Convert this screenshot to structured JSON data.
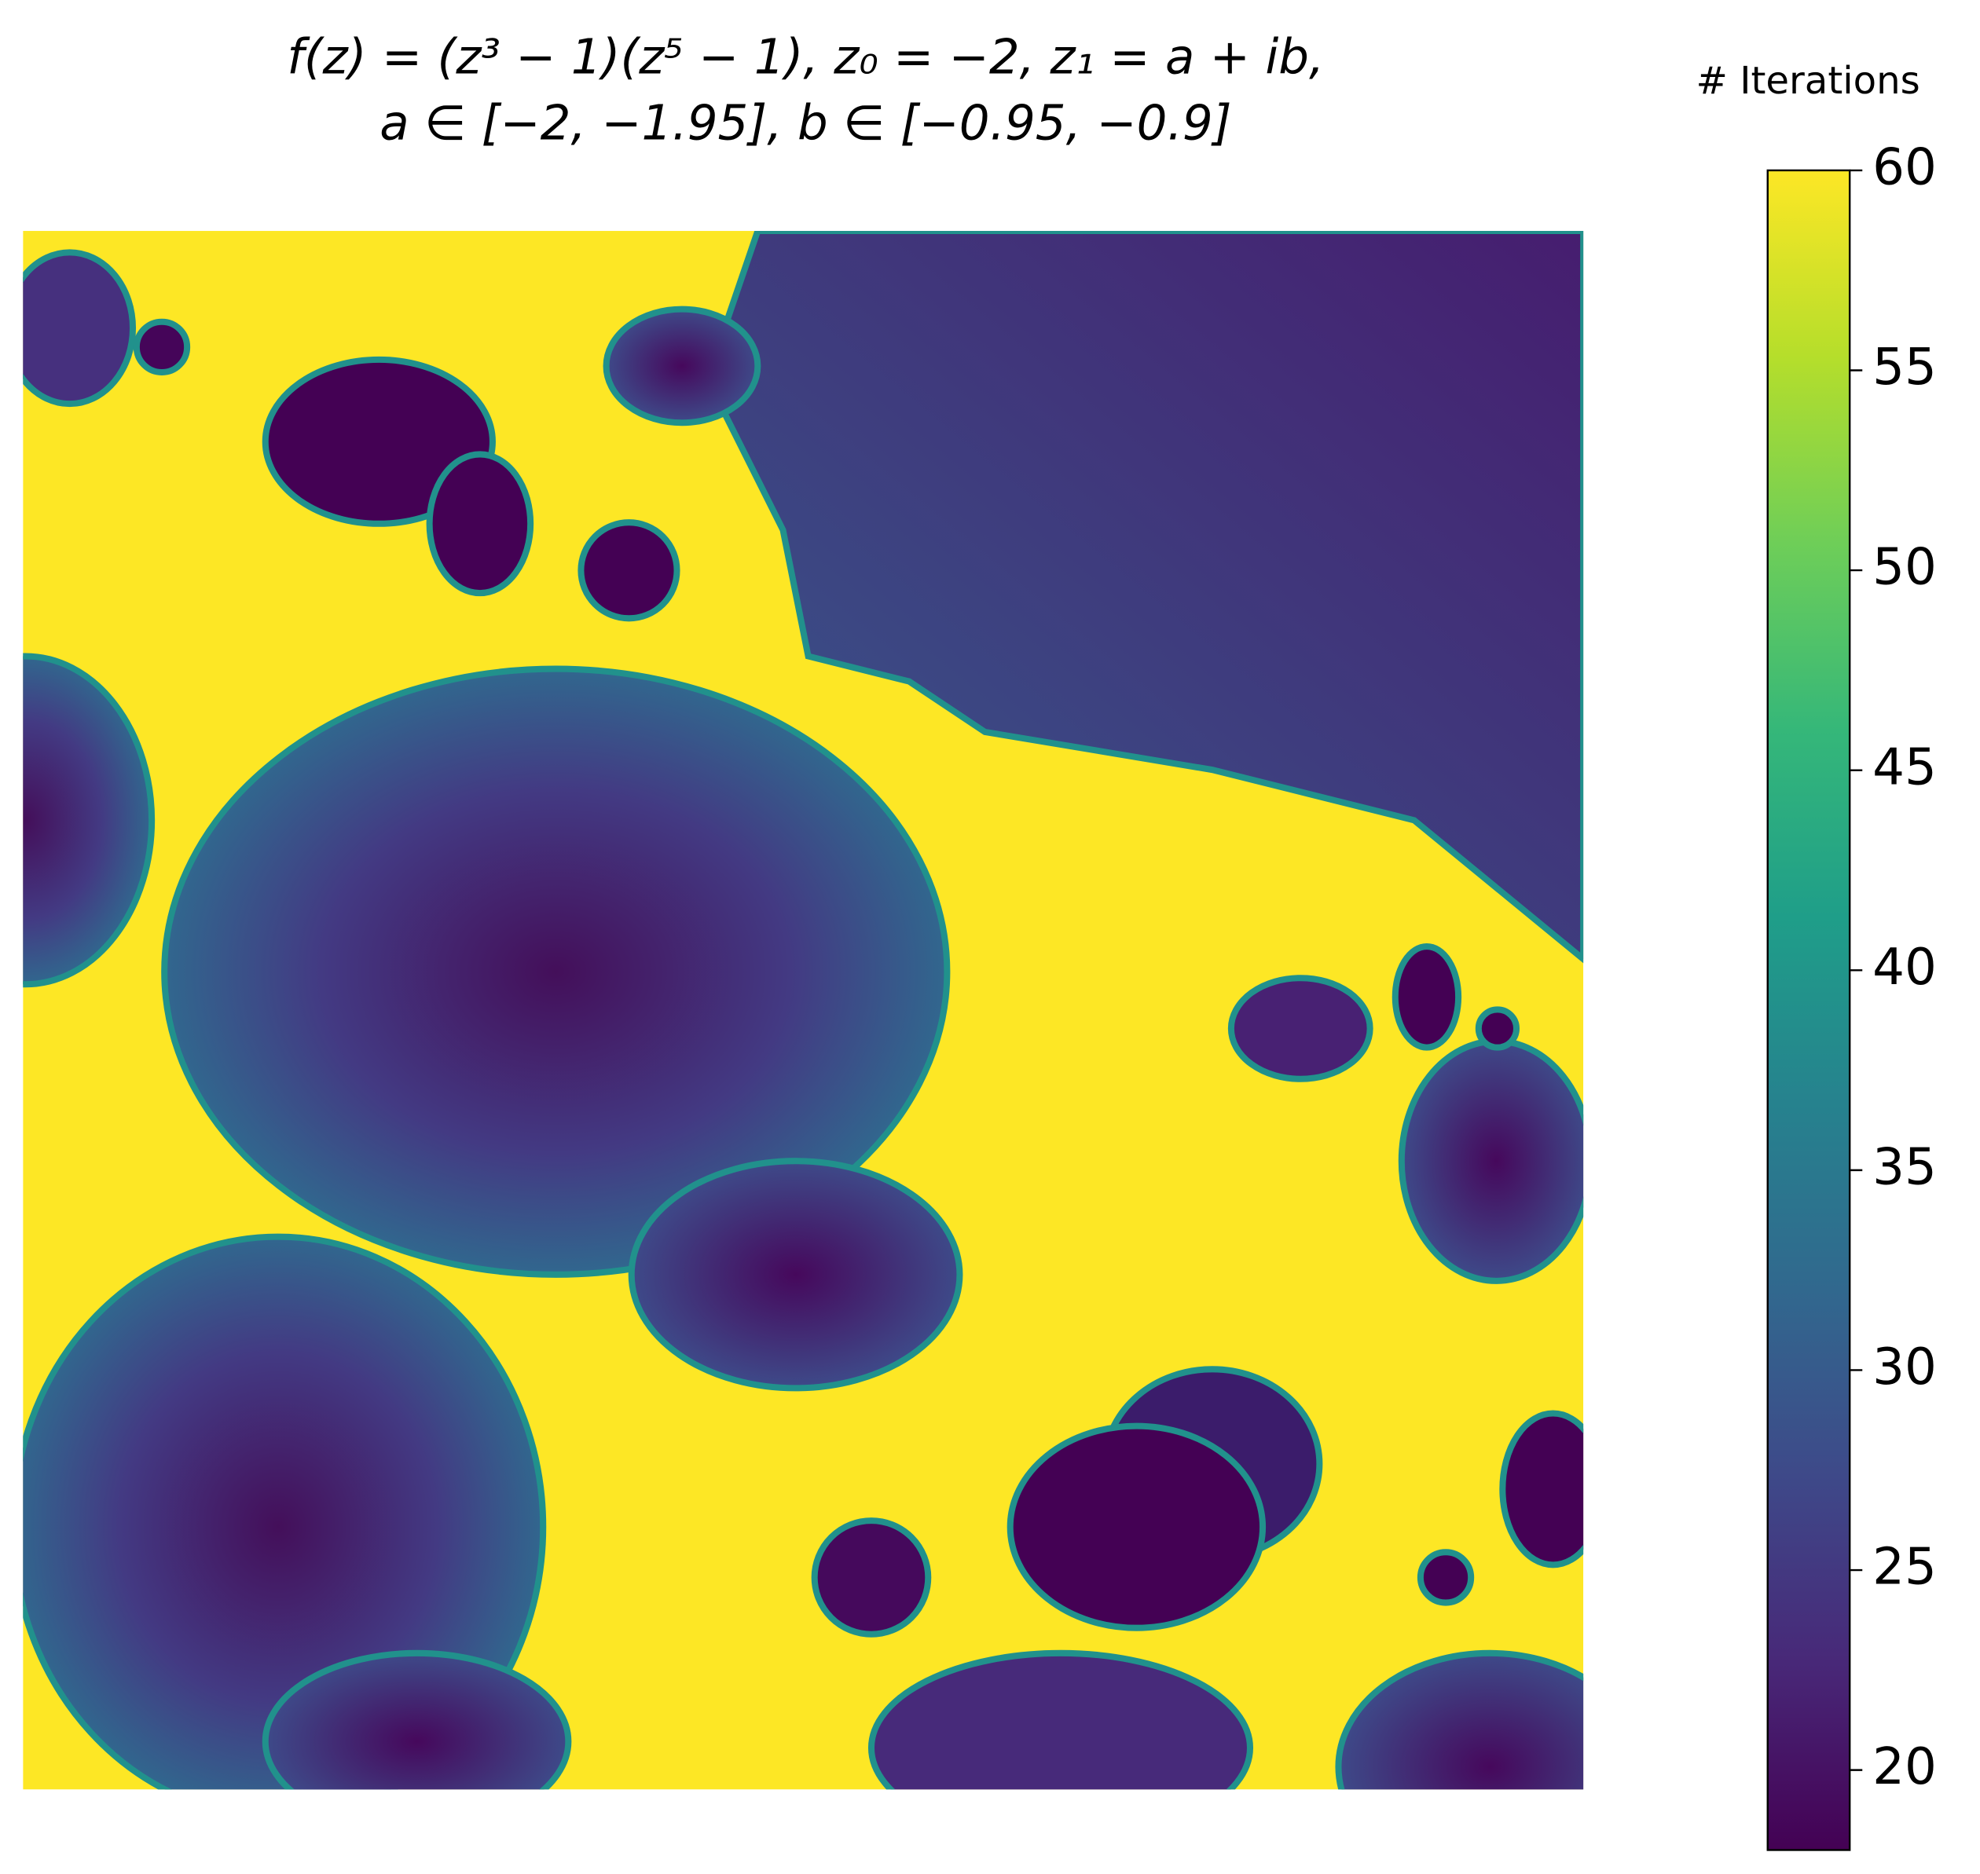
{
  "chart_data": {
    "type": "heatmap",
    "title": [
      "f(z) = (z³ − 1)(z⁵ − 1), z₀ = −2, z₁ = a + ib,",
      "a ∈ [−2, −1.95], b ∈ [−0.95, −0.9]"
    ],
    "colorbar_label": "# Iterations",
    "colormap": "viridis",
    "clim": [
      18,
      60
    ],
    "cticks": [
      20,
      25,
      30,
      35,
      40,
      45,
      50,
      55,
      60
    ]
  }
}
